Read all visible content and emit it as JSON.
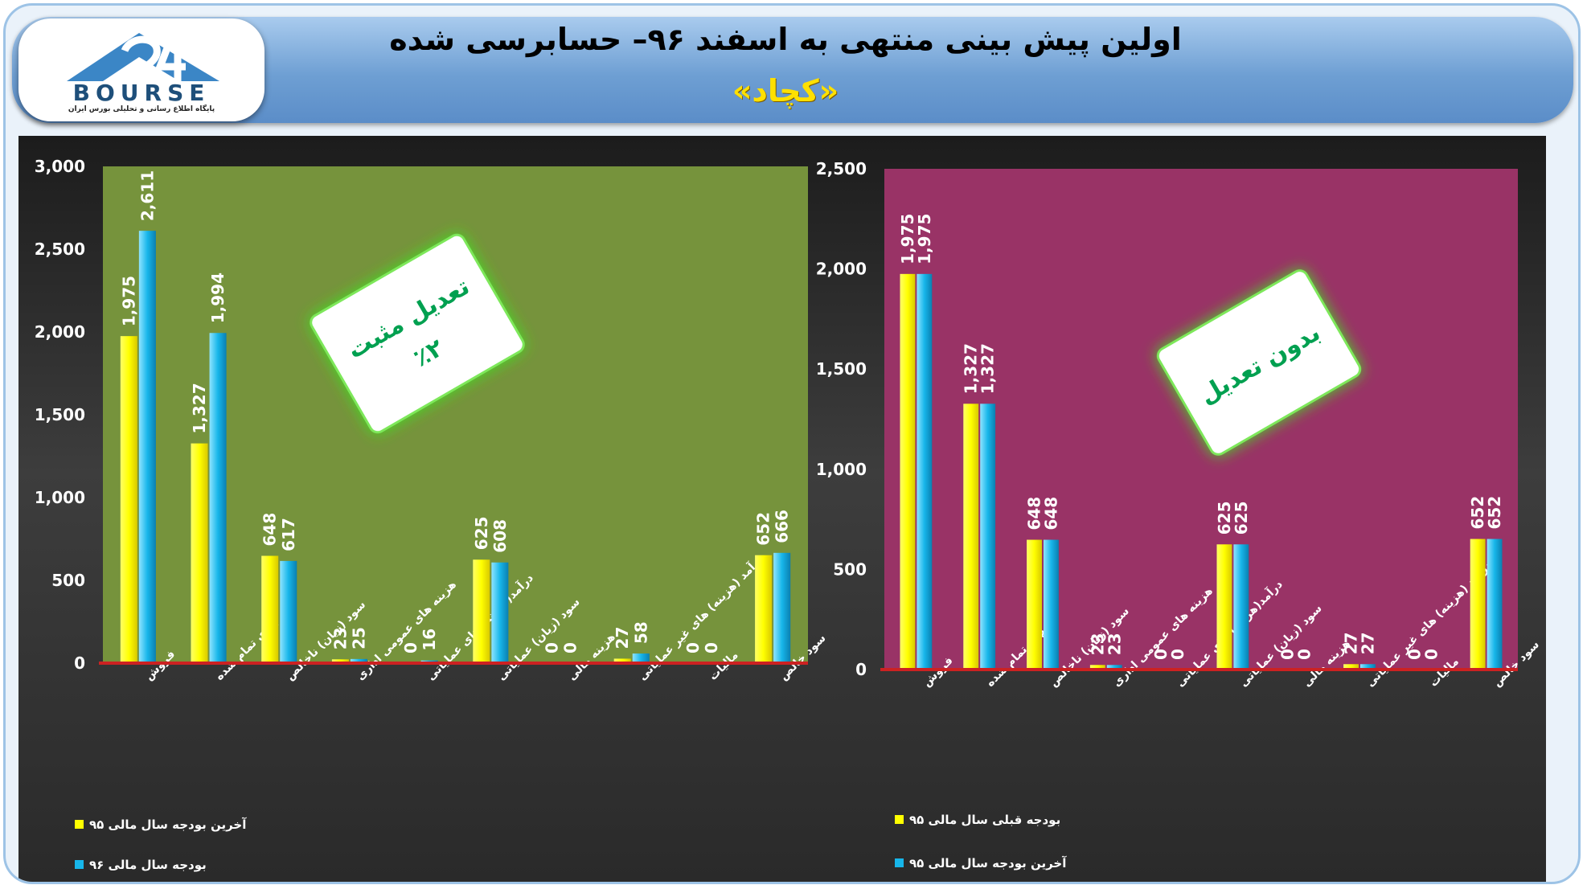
{
  "header": {
    "title": "اولین پیش بینی منتهی به اسفند ۹۶– حسابرسی شده",
    "subtitle": "«کچاد»",
    "logo_word": "BOURSE",
    "logo_tagline": "پایگاه اطلاع رسانی و تحلیلی بورس ایران"
  },
  "colors": {
    "series_a": "#ffff00",
    "series_b": "#17b6ea",
    "left_plot_bg": "#76933c",
    "right_plot_bg": "#993366",
    "stamp_glow": "#44dd22",
    "stamp_text": "#00a050"
  },
  "chart_data": [
    {
      "type": "bar",
      "categories": [
        "فروش",
        "بهای تمام شده",
        "سود (زیان) ناخالص",
        "هزینه های عمومی اداری",
        "درآمد(هزینه) های عملیاتی",
        "سود (زیان) عملیاتی",
        "هزینه مالی",
        "درآمد (هزینه) های غیر عملیاتی",
        "مالیات",
        "سود خالص"
      ],
      "series": [
        {
          "name": "آخرین بودجه سال مالی ۹۵",
          "values": [
            1975,
            1327,
            648,
            23,
            0,
            625,
            0,
            27,
            0,
            652
          ],
          "labels": [
            "1,975",
            "1,327",
            "648",
            "23",
            "0",
            "625",
            "0",
            "27",
            "0",
            "652"
          ]
        },
        {
          "name": "بودجه سال مالی ۹۶",
          "values": [
            2611,
            1994,
            617,
            25,
            16,
            608,
            0,
            58,
            0,
            666
          ],
          "labels": [
            "2,611",
            "1,994",
            "617",
            "25",
            "16",
            "608",
            "0",
            "58",
            "0",
            "666"
          ]
        }
      ],
      "ylim": [
        0,
        3000
      ],
      "yticks": [
        0,
        500,
        1000,
        1500,
        2000,
        2500,
        3000
      ],
      "ytick_labels": [
        "0",
        "500",
        "1,000",
        "1,500",
        "2,000",
        "2,500",
        "3,000"
      ],
      "grid": false,
      "legend": "bottom-left",
      "stamp": {
        "line1": "تعدیل مثبت",
        "line2": "٪۲"
      }
    },
    {
      "type": "bar",
      "categories": [
        "فروش",
        "بهای تمام شده",
        "سود (زیان) ناخالص",
        "هزینه های عمومی اداری",
        "درآمد(هزینه) های عملیاتی",
        "سود (زیان) عملیاتی",
        "هزینه مالی",
        "درآمد (هزینه) های غیر عملیاتی",
        "مالیات",
        "سود خالص"
      ],
      "series": [
        {
          "name": "بودجه قبلی سال مالی ۹۵",
          "values": [
            1975,
            1327,
            648,
            23,
            0,
            625,
            0,
            27,
            0,
            652
          ],
          "labels": [
            "1,975",
            "1,327",
            "648",
            "23",
            "0",
            "625",
            "0",
            "27",
            "0",
            "652"
          ]
        },
        {
          "name": "آخرین بودجه سال مالی ۹۵",
          "values": [
            1975,
            1327,
            648,
            23,
            0,
            625,
            0,
            27,
            0,
            652
          ],
          "labels": [
            "1,975",
            "1,327",
            "648",
            "23",
            "0",
            "625",
            "0",
            "27",
            "0",
            "652"
          ]
        }
      ],
      "ylim": [
        0,
        2500
      ],
      "yticks": [
        0,
        500,
        1000,
        1500,
        2000,
        2500
      ],
      "ytick_labels": [
        "0",
        "500",
        "1,000",
        "1,500",
        "2,000",
        "2,500"
      ],
      "grid": false,
      "legend": "bottom-left",
      "stamp": {
        "line1": "بدون تعدیل",
        "line2": ""
      }
    }
  ]
}
